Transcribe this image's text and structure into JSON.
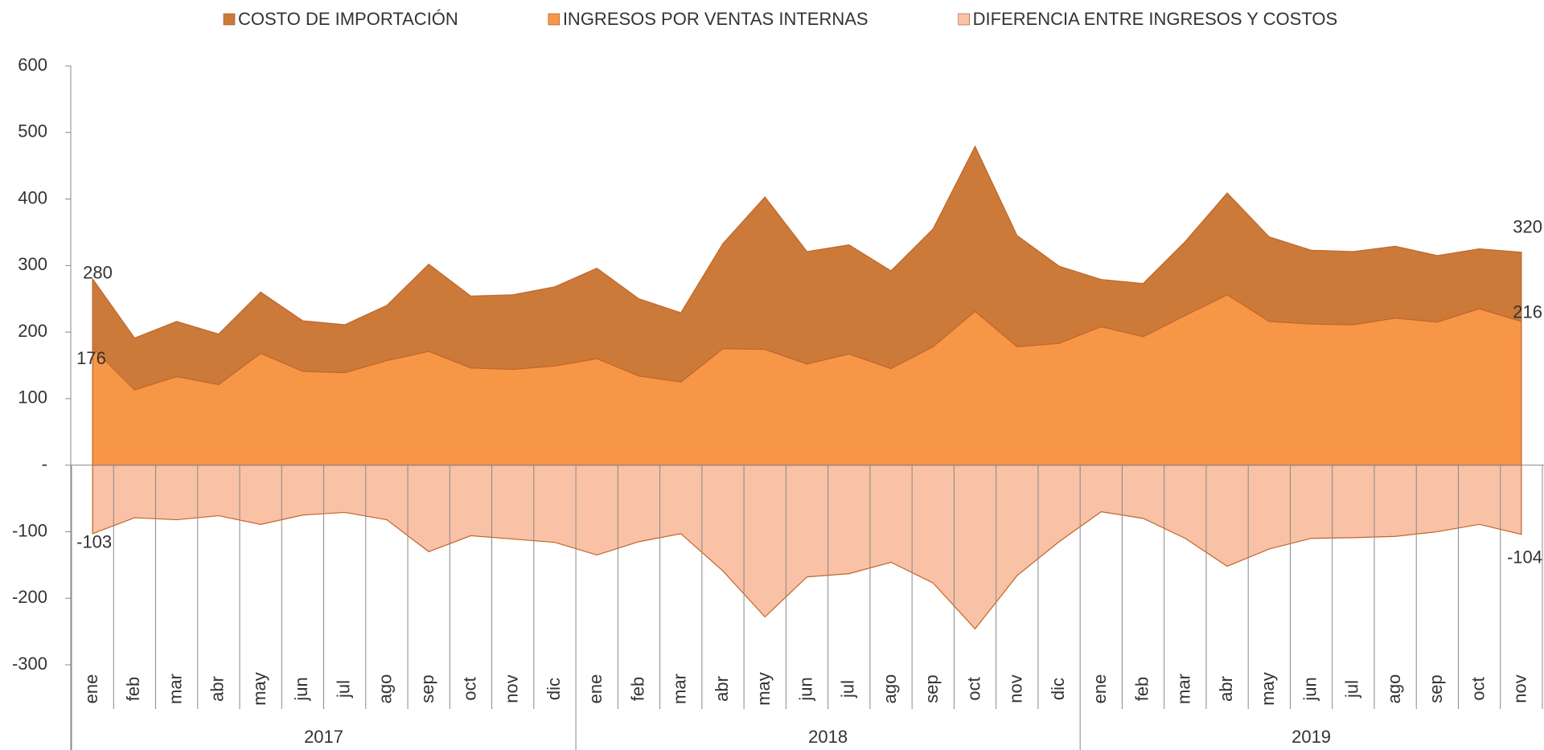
{
  "chart_data": {
    "type": "area",
    "category_groups": [
      {
        "label": "2017",
        "categories": [
          "ene",
          "feb",
          "mar",
          "abr",
          "may",
          "jun",
          "jul",
          "ago",
          "sep",
          "oct",
          "nov",
          "dic"
        ]
      },
      {
        "label": "2018",
        "categories": [
          "ene",
          "feb",
          "mar",
          "abr",
          "may",
          "jun",
          "jul",
          "ago",
          "sep",
          "oct",
          "nov",
          "dic"
        ]
      },
      {
        "label": "2019",
        "categories": [
          "ene",
          "feb",
          "mar",
          "abr",
          "may",
          "jun",
          "jul",
          "ago",
          "sep",
          "oct",
          "nov"
        ]
      }
    ],
    "series": [
      {
        "name": "COSTO DE IMPORTACIÓN",
        "color": "#cb7a39",
        "values": [
          280,
          191,
          216,
          197,
          260,
          217,
          211,
          240,
          302,
          254,
          256,
          268,
          296,
          250,
          229,
          333,
          403,
          321,
          331,
          292,
          355,
          479,
          345,
          299,
          279,
          273,
          336,
          409,
          343,
          323,
          321,
          329,
          315,
          325,
          320
        ]
      },
      {
        "name": "INGRESOS POR VENTAS INTERNAS",
        "color": "#f79646",
        "values": [
          176,
          113,
          133,
          121,
          168,
          141,
          139,
          157,
          171,
          146,
          144,
          149,
          160,
          134,
          125,
          175,
          174,
          152,
          167,
          145,
          178,
          231,
          178,
          183,
          208,
          193,
          225,
          256,
          216,
          212,
          211,
          221,
          215,
          235,
          216
        ]
      },
      {
        "name": "DIFERENCIA ENTRE INGRESOS Y COSTOS",
        "color": "#f9c1a6",
        "values": [
          -103,
          -79,
          -82,
          -76,
          -89,
          -75,
          -71,
          -82,
          -130,
          -106,
          -111,
          -116,
          -135,
          -115,
          -103,
          -159,
          -228,
          -168,
          -163,
          -146,
          -177,
          -246,
          -166,
          -115,
          -70,
          -80,
          -110,
          -152,
          -126,
          -110,
          -109,
          -107,
          -100,
          -89,
          -104
        ]
      }
    ],
    "ylim": [
      -300,
      600
    ],
    "yticks": [
      -300,
      -200,
      -100,
      {
        "value": 0,
        "label": "-"
      },
      100,
      200,
      300,
      400,
      500,
      600
    ],
    "legend": "top"
  }
}
